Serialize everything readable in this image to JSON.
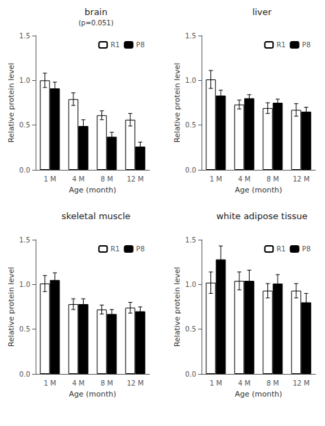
{
  "chart_data": [
    {
      "type": "bar",
      "title": "brain",
      "annotation": "(p=0.051)",
      "categories": [
        "1 M",
        "4 M",
        "8 M",
        "12 M"
      ],
      "series": [
        {
          "name": "R1",
          "color": "white",
          "values": [
            1.0,
            0.79,
            0.61,
            0.56
          ],
          "errors": [
            0.08,
            0.07,
            0.05,
            0.07
          ]
        },
        {
          "name": "P8",
          "color": "black",
          "values": [
            0.91,
            0.49,
            0.37,
            0.26
          ],
          "errors": [
            0.07,
            0.07,
            0.05,
            0.05
          ]
        }
      ],
      "xlabel": "Age (month)",
      "ylabel": "Relative protein level",
      "ylim": [
        0,
        1.5
      ],
      "yticks": [
        {
          "value": 0,
          "label": "0.0"
        },
        0.5,
        {
          "value": 1,
          "label": "1.0"
        },
        1.5
      ],
      "grid": false,
      "legend": "upper right"
    },
    {
      "type": "bar",
      "title": "liver",
      "categories": [
        "1 M",
        "4 M",
        "8 M",
        "12 M"
      ],
      "series": [
        {
          "name": "R1",
          "color": "white",
          "values": [
            1.01,
            0.73,
            0.69,
            0.67
          ],
          "errors": [
            0.1,
            0.05,
            0.06,
            0.07
          ]
        },
        {
          "name": "P8",
          "color": "black",
          "values": [
            0.83,
            0.8,
            0.75,
            0.65
          ],
          "errors": [
            0.06,
            0.04,
            0.04,
            0.05
          ]
        }
      ],
      "xlabel": "Age (month)",
      "ylabel": "Relative protein level",
      "ylim": [
        0,
        1.5
      ],
      "yticks": [
        {
          "value": 0,
          "label": "0.0"
        },
        0.5,
        {
          "value": 1,
          "label": "1.0"
        },
        1.5
      ],
      "grid": false,
      "legend": "upper right"
    },
    {
      "type": "bar",
      "title": "skeletal muscle",
      "categories": [
        "1 M",
        "4 M",
        "8 M",
        "12 M"
      ],
      "series": [
        {
          "name": "R1",
          "color": "white",
          "values": [
            1.01,
            0.78,
            0.72,
            0.74
          ],
          "errors": [
            0.09,
            0.06,
            0.05,
            0.06
          ]
        },
        {
          "name": "P8",
          "color": "black",
          "values": [
            1.05,
            0.78,
            0.67,
            0.7
          ],
          "errors": [
            0.08,
            0.06,
            0.05,
            0.05
          ]
        }
      ],
      "xlabel": "Age (month)",
      "ylabel": "Relative protein level",
      "ylim": [
        0,
        1.5
      ],
      "yticks": [
        {
          "value": 0,
          "label": "0.0"
        },
        0.5,
        {
          "value": 1,
          "label": "1.0"
        },
        1.5
      ],
      "grid": false,
      "legend": "upper right"
    },
    {
      "type": "bar",
      "title": "white adipose tissue",
      "categories": [
        "1 M",
        "4 M",
        "8 M",
        "12 M"
      ],
      "series": [
        {
          "name": "R1",
          "color": "white",
          "values": [
            1.02,
            1.04,
            0.93,
            0.93
          ],
          "errors": [
            0.12,
            0.1,
            0.08,
            0.08
          ]
        },
        {
          "name": "P8",
          "color": "black",
          "values": [
            1.28,
            1.04,
            1.01,
            0.8
          ],
          "errors": [
            0.15,
            0.12,
            0.1,
            0.1
          ]
        }
      ],
      "xlabel": "Age (month)",
      "ylabel": "Relative protein level",
      "ylim": [
        0,
        1.5
      ],
      "yticks": [
        {
          "value": 0,
          "label": "0.0"
        },
        0.5,
        {
          "value": 1,
          "label": "1.0"
        },
        1.5
      ],
      "grid": false,
      "legend": "upper right"
    }
  ]
}
